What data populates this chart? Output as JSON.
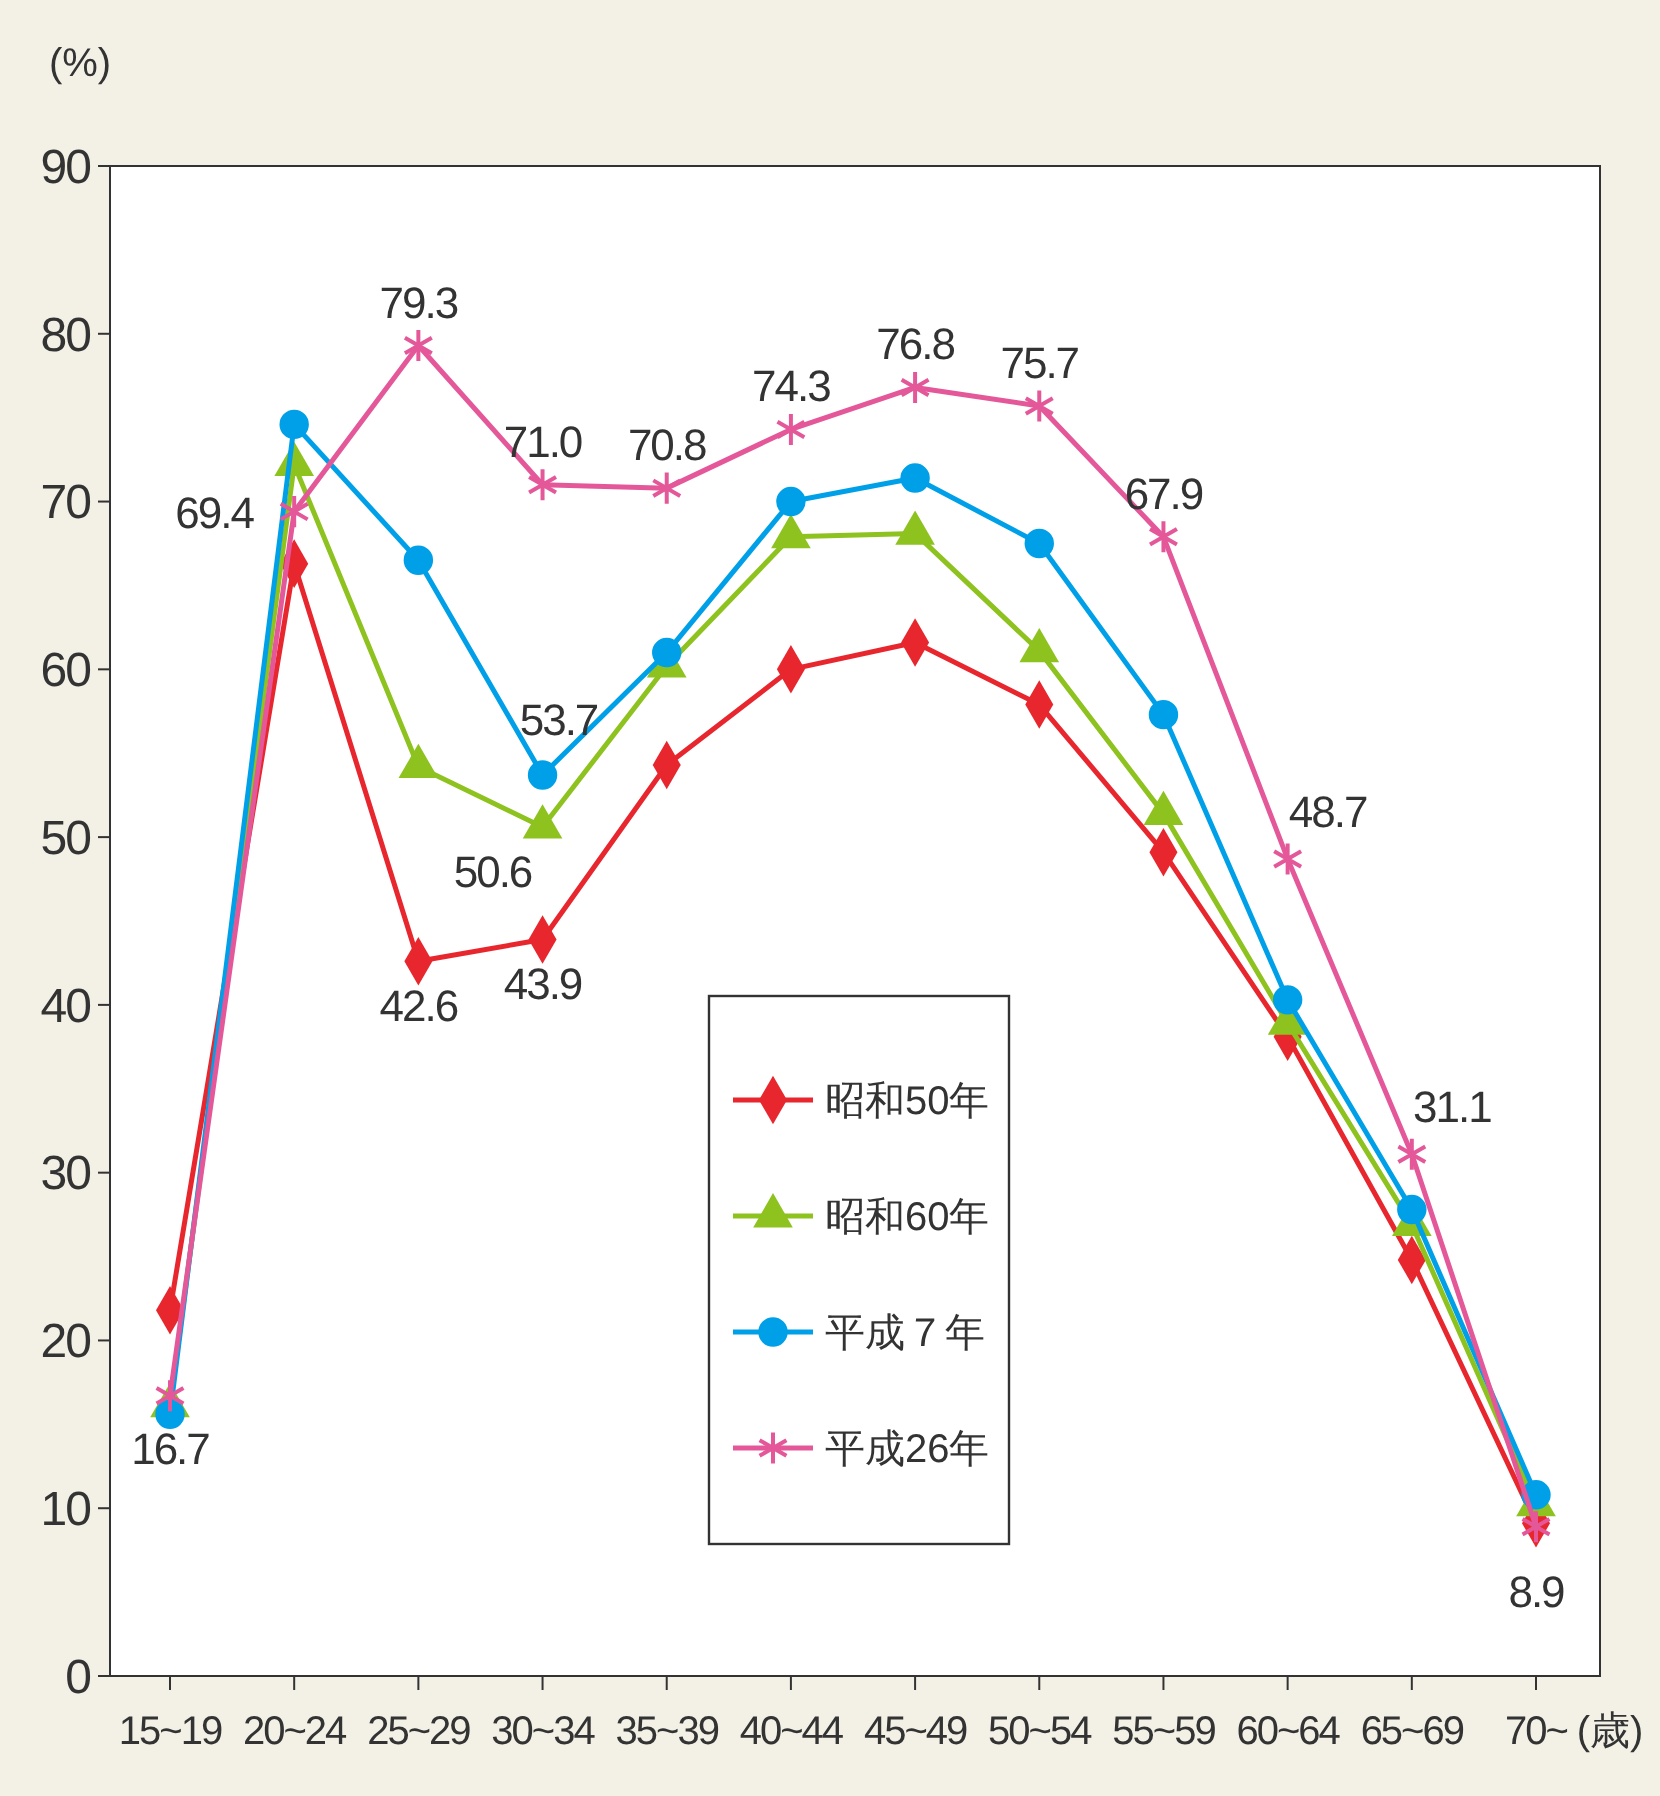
{
  "chart_data": {
    "type": "line",
    "xlabel": "(歳)",
    "ylabel": "(%)",
    "categories": [
      "15~19",
      "20~24",
      "25~29",
      "30~34",
      "35~39",
      "40~44",
      "45~49",
      "50~54",
      "55~59",
      "60~64",
      "65~69",
      "70~"
    ],
    "ylim": [
      0,
      90
    ],
    "yticks": [
      0,
      10,
      20,
      30,
      40,
      50,
      60,
      70,
      80,
      90
    ],
    "grid": false,
    "legend": "bottom",
    "series": [
      {
        "name": "昭和50年",
        "color": "#e8262e",
        "marker": "diamond",
        "values": [
          21.8,
          66.3,
          42.6,
          43.9,
          54.3,
          60.0,
          61.6,
          57.9,
          49.1,
          38.1,
          24.8,
          9.1
        ],
        "value_labels": [
          null,
          null,
          "42.6",
          "43.9",
          null,
          null,
          null,
          null,
          null,
          null,
          null,
          null
        ]
      },
      {
        "name": "昭和60年",
        "color": "#8dc21f",
        "marker": "triangle",
        "values": [
          16.1,
          72.2,
          54.2,
          50.6,
          60.2,
          67.9,
          68.1,
          61.1,
          51.4,
          38.9,
          26.9,
          10.2
        ],
        "value_labels": [
          null,
          null,
          null,
          "50.6",
          null,
          null,
          null,
          null,
          null,
          null,
          null,
          null
        ]
      },
      {
        "name": "平成７年",
        "color": "#00a0e9",
        "marker": "circle",
        "values": [
          15.6,
          74.6,
          66.5,
          53.7,
          61.0,
          70.0,
          71.4,
          67.5,
          57.3,
          40.3,
          27.8,
          10.8
        ],
        "value_labels": [
          null,
          null,
          null,
          "53.7",
          null,
          null,
          null,
          null,
          null,
          null,
          null,
          null
        ]
      },
      {
        "name": "平成26年",
        "color": "#e4589a",
        "marker": "cross",
        "values": [
          16.7,
          69.4,
          79.3,
          71.0,
          70.8,
          74.3,
          76.8,
          75.7,
          67.9,
          48.7,
          31.1,
          8.9
        ],
        "value_labels": [
          "16.7",
          "69.4",
          "79.3",
          "71.0",
          "70.8",
          "74.3",
          "76.8",
          "75.7",
          "67.9",
          "48.7",
          "31.1",
          "8.9"
        ]
      }
    ]
  }
}
